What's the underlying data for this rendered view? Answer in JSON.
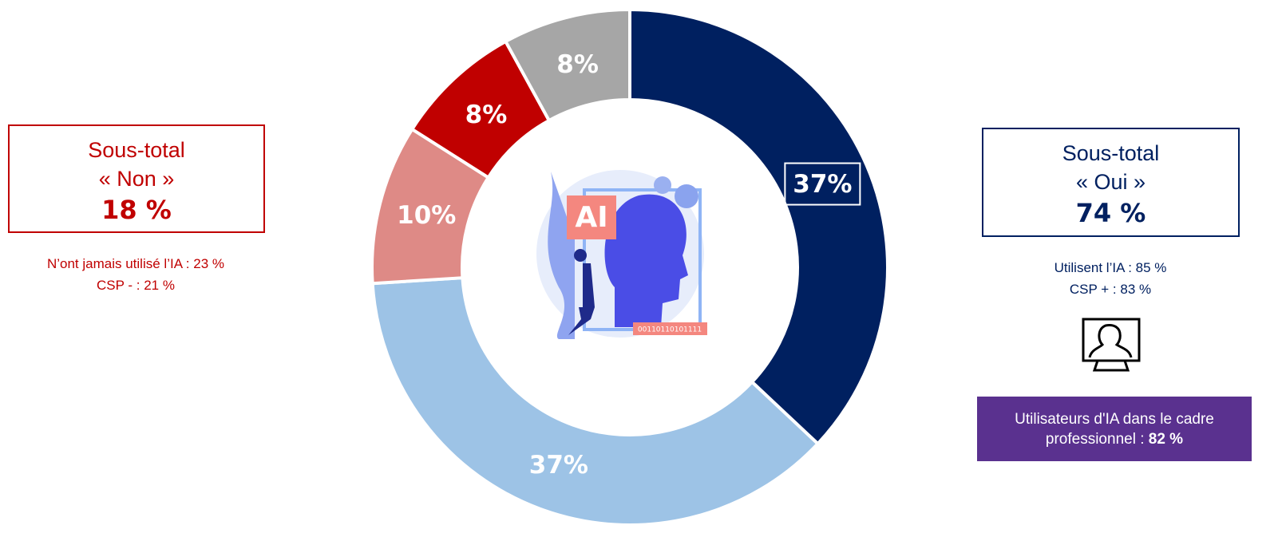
{
  "chart_data": {
    "type": "donut",
    "categories": [
      null,
      null,
      null,
      null,
      null
    ],
    "values": [
      37,
      37,
      10,
      8,
      8
    ],
    "value_labels": [
      "37%",
      "37%",
      "10%",
      "8%",
      "8%"
    ],
    "colors": [
      "#002060",
      "#9dc3e6",
      "#de8a86",
      "#c00000",
      "#a6a6a6"
    ],
    "boxed_value_label": 0
  },
  "left_panel": {
    "box": [
      "Sous-total",
      "« Non »",
      "18 %"
    ],
    "notes": [
      "N’ont jamais utilisé l’IA : 23 %",
      "CSP - : 21 %"
    ]
  },
  "right_panel": {
    "box": [
      "Sous-total",
      "« Oui »",
      "74 %"
    ],
    "notes": [
      "Utilisent l’IA : 85 %",
      "CSP + : 83  %"
    ]
  },
  "badge": {
    "text": "Utilisateurs d'IA dans le cadre professionnel : ",
    "value": "82 %"
  },
  "illustration": {
    "label": "AI",
    "code": "00110110101111"
  }
}
